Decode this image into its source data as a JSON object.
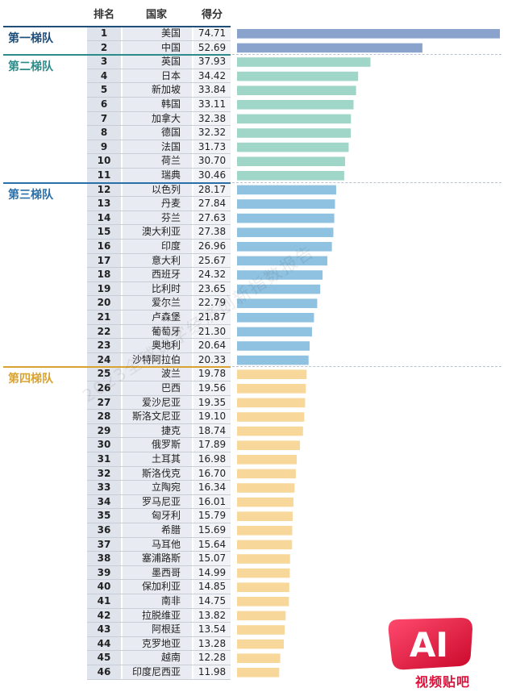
{
  "headers": {
    "rank": "排名",
    "country": "国家",
    "score": "得分"
  },
  "tiers": [
    {
      "label": "第一梯队",
      "start": 1,
      "end": 2,
      "color": "#1f4e79",
      "bar": "#8aa3cd"
    },
    {
      "label": "第二梯队",
      "start": 3,
      "end": 11,
      "color": "#2e8b8b",
      "bar": "#9fd6c8"
    },
    {
      "label": "第三梯队",
      "start": 12,
      "end": 24,
      "color": "#2a6fa8",
      "bar": "#8fc1e0"
    },
    {
      "label": "第四梯队",
      "start": 25,
      "end": 46,
      "color": "#d9a331",
      "bar": "#f7d79a"
    }
  ],
  "watermark": "2023全球数字经济创新指数报告",
  "logo": {
    "big": "AI",
    "small": "视频贴吧"
  },
  "chart_data": {
    "type": "bar",
    "orientation": "horizontal",
    "xlim": [
      0,
      74.71
    ],
    "ranks": [
      1,
      2,
      3,
      4,
      5,
      6,
      7,
      8,
      9,
      10,
      11,
      12,
      13,
      14,
      15,
      16,
      17,
      18,
      19,
      20,
      21,
      22,
      23,
      24,
      25,
      26,
      27,
      28,
      29,
      30,
      31,
      32,
      33,
      34,
      35,
      36,
      37,
      38,
      39,
      40,
      41,
      42,
      43,
      44,
      45,
      46
    ],
    "categories": [
      "美国",
      "中国",
      "英国",
      "日本",
      "新加坡",
      "韩国",
      "加拿大",
      "德国",
      "法国",
      "荷兰",
      "瑞典",
      "以色列",
      "丹麦",
      "芬兰",
      "澳大利亚",
      "印度",
      "意大利",
      "西班牙",
      "比利时",
      "爱尔兰",
      "卢森堡",
      "葡萄牙",
      "奥地利",
      "沙特阿拉伯",
      "波兰",
      "巴西",
      "爱沙尼亚",
      "斯洛文尼亚",
      "捷克",
      "俄罗斯",
      "土耳其",
      "斯洛伐克",
      "立陶宛",
      "罗马尼亚",
      "匈牙利",
      "希腊",
      "马耳他",
      "塞浦路斯",
      "墨西哥",
      "保加利亚",
      "南非",
      "拉脱维亚",
      "阿根廷",
      "克罗地亚",
      "越南",
      "印度尼西亚"
    ],
    "values": [
      "74.71",
      "52.69",
      "37.93",
      "34.42",
      "33.84",
      "33.11",
      "32.38",
      "32.32",
      "31.73",
      "30.70",
      "30.46",
      "28.17",
      "27.84",
      "27.63",
      "27.38",
      "26.96",
      "25.67",
      "24.32",
      "23.65",
      "22.79",
      "21.87",
      "21.30",
      "20.64",
      "20.33",
      "19.78",
      "19.56",
      "19.35",
      "19.10",
      "18.74",
      "17.89",
      "16.98",
      "16.70",
      "16.34",
      "16.01",
      "15.79",
      "15.69",
      "15.64",
      "15.07",
      "14.99",
      "14.85",
      "14.75",
      "13.82",
      "13.54",
      "13.28",
      "12.28",
      "11.98"
    ]
  }
}
